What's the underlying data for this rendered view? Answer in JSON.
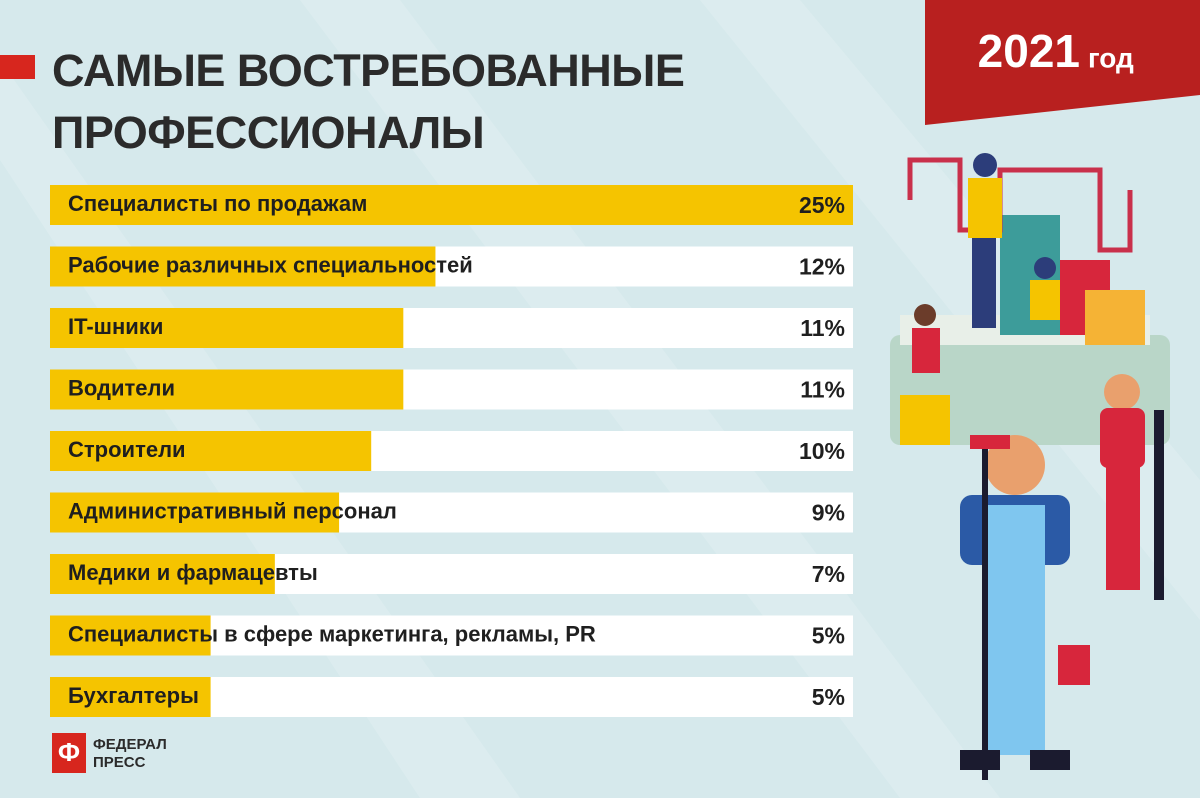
{
  "chart_data": {
    "type": "bar",
    "orientation": "horizontal",
    "title": "САМЫЕ ВОСТРЕБОВАННЫЕ ПРОФЕССИОНАЛЫ",
    "badge_year": "2021",
    "badge_unit": "год",
    "categories": [
      "Специалисты по продажам",
      "Рабочие различных специальностей",
      "IT-шники",
      "Водители",
      "Строители",
      "Административный персонал",
      "Медики и фармацевты",
      "Специалисты в сфере маркетинга, рекламы, PR",
      "Бухгалтеры"
    ],
    "values": [
      25,
      12,
      11,
      11,
      10,
      9,
      7,
      5,
      5
    ],
    "value_labels": [
      "25%",
      "12%",
      "11%",
      "11%",
      "10%",
      "9%",
      "7%",
      "5%",
      "5%"
    ],
    "xlim": [
      0,
      25
    ],
    "color": "#f5c400",
    "logo": [
      "ФЕДЕРАЛ",
      "ПРЕСС"
    ]
  }
}
